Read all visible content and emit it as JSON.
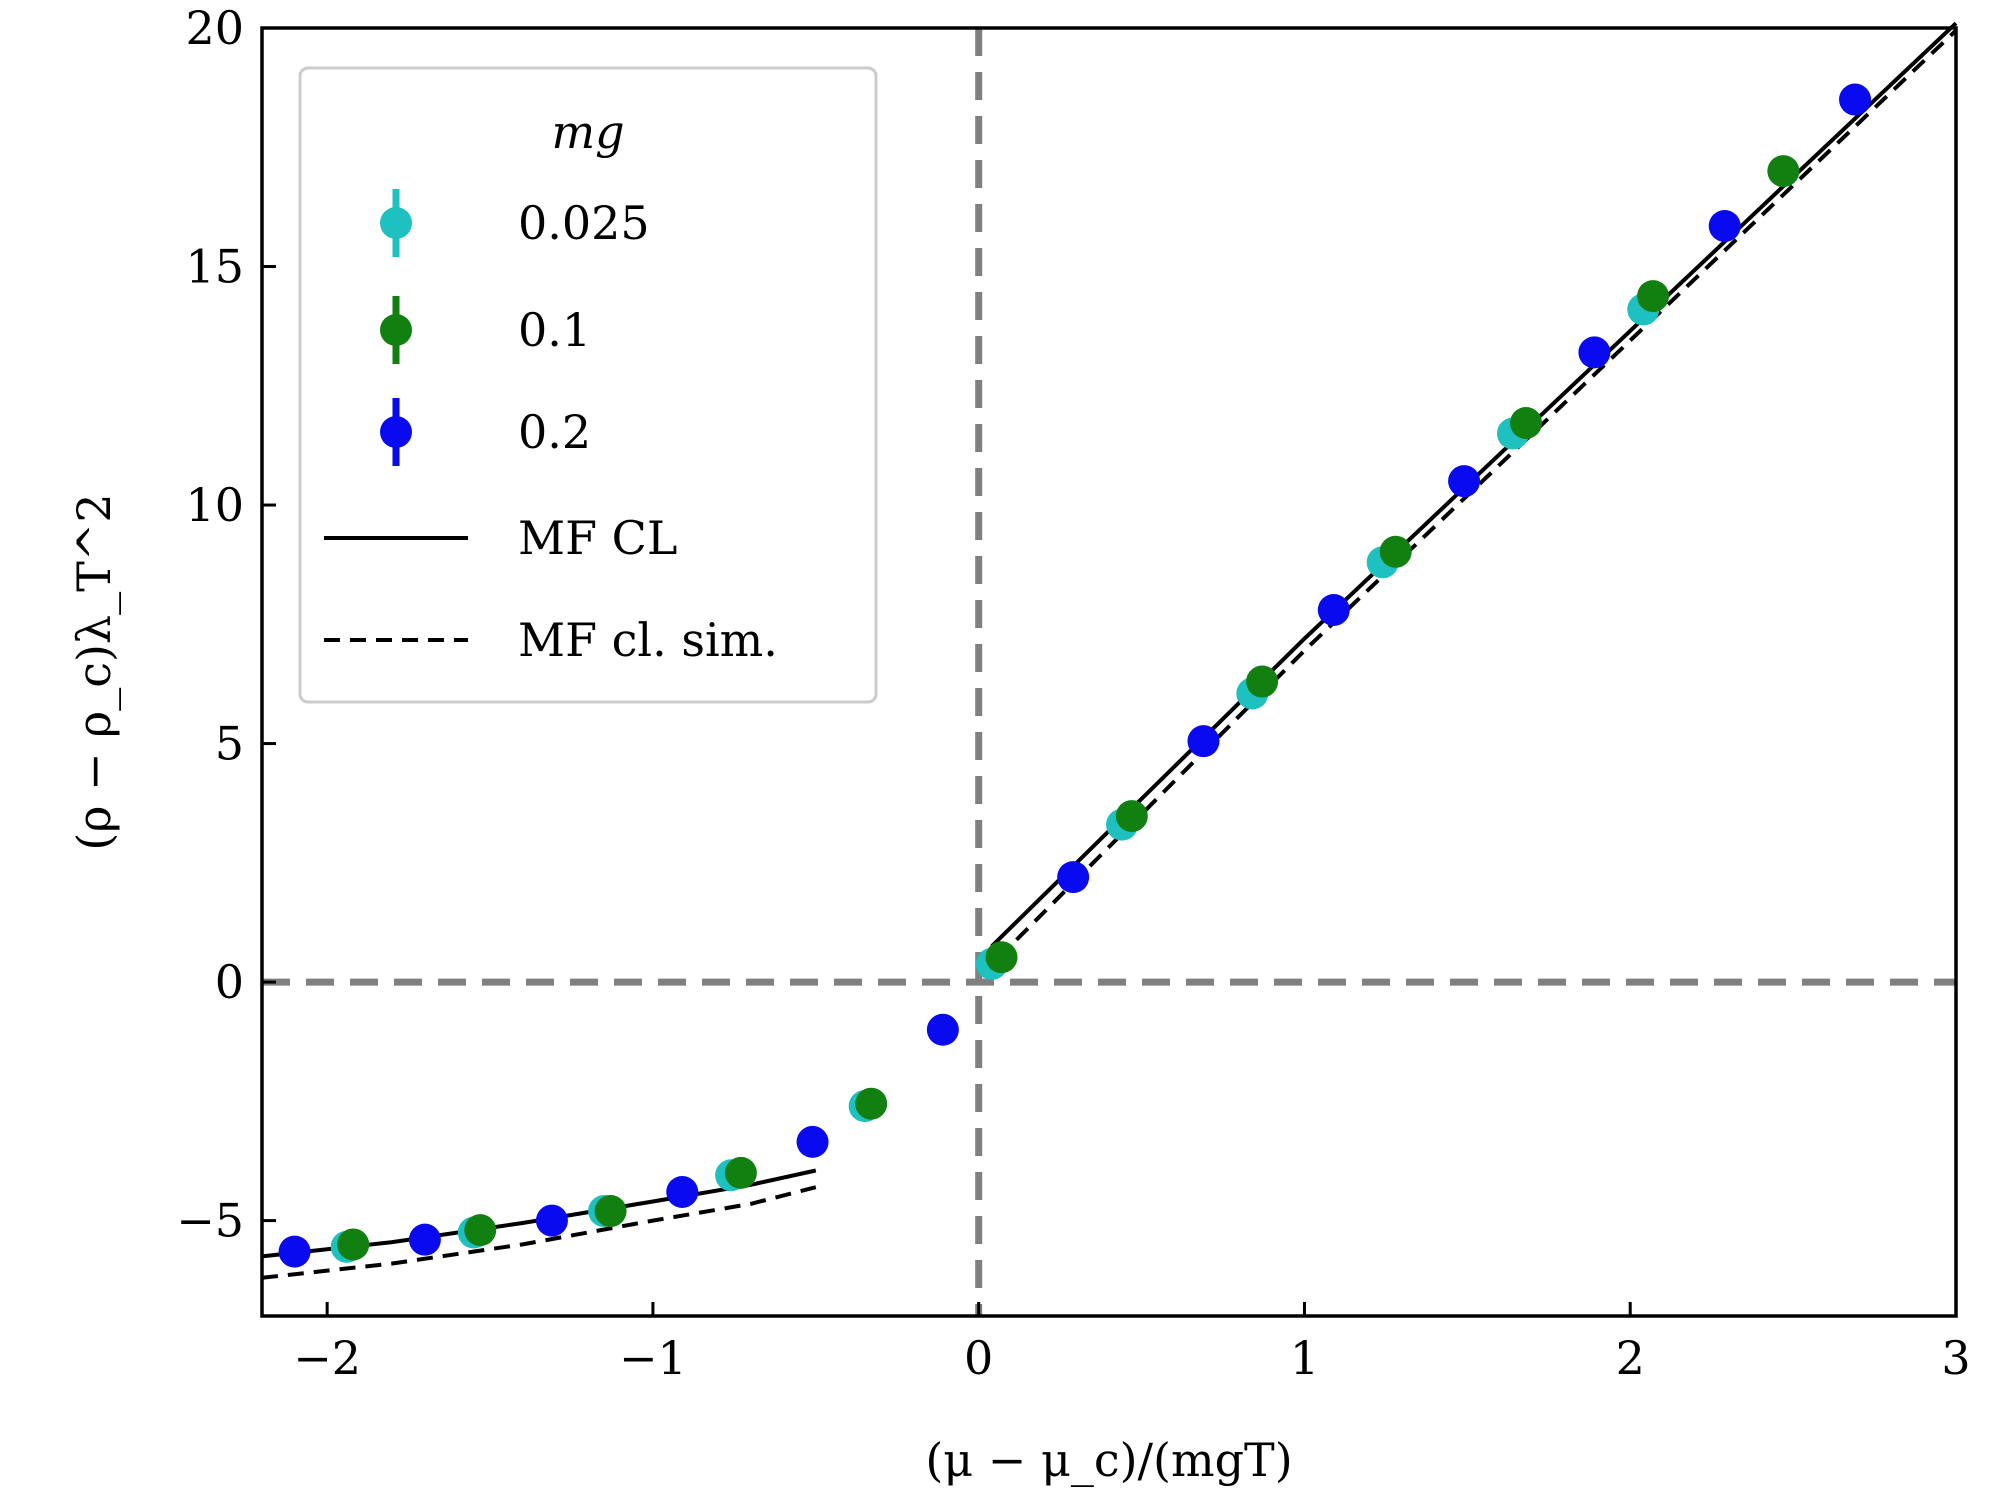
{
  "chart_data": {
    "type": "scatter",
    "xlabel": "(μ − μ_c)/(mgT)",
    "ylabel": "(ρ − ρ_c)λ_T^2",
    "xlim": [
      -2.2,
      3.0
    ],
    "ylim": [
      -7.0,
      20.0
    ],
    "xticks": [
      -2,
      -1,
      0,
      1,
      2,
      3
    ],
    "xtick_labels": [
      "−2",
      "−1",
      "0",
      "1",
      "2",
      "3"
    ],
    "yticks": [
      -5,
      0,
      5,
      10,
      15,
      20
    ],
    "ytick_labels": [
      "−5",
      "0",
      "5",
      "10",
      "15",
      "20"
    ],
    "grid": false,
    "reference_lines": {
      "vertical_x": 0,
      "horizontal_y": 0,
      "color": "#808080",
      "style": "dashed"
    },
    "legend": {
      "title": "mg",
      "placement": "upper-left",
      "entries": [
        "0.025",
        "0.1",
        "0.2",
        "MF CL",
        "MF cl. sim."
      ]
    },
    "series": [
      {
        "name": "0.025",
        "kind": "markers",
        "color": "#1fc0c0",
        "x": [
          -1.94,
          -1.55,
          -1.15,
          -0.76,
          -0.35,
          0.04,
          0.44,
          0.84,
          1.24,
          1.64,
          2.04
        ],
        "y": [
          -5.55,
          -5.25,
          -4.8,
          -4.05,
          -2.6,
          0.38,
          3.3,
          6.05,
          8.8,
          11.5,
          14.1
        ]
      },
      {
        "name": "0.1",
        "kind": "markers",
        "color": "#118011",
        "x": [
          -1.92,
          -1.53,
          -1.13,
          -0.73,
          -0.33,
          0.07,
          0.47,
          0.87,
          1.28,
          1.68,
          2.07,
          2.47
        ],
        "y": [
          -5.5,
          -5.2,
          -4.8,
          -4.0,
          -2.55,
          0.52,
          3.48,
          6.3,
          9.02,
          11.72,
          14.38,
          17.0
        ]
      },
      {
        "name": "0.2",
        "kind": "markers",
        "color": "#0a0af0",
        "x": [
          -2.1,
          -1.7,
          -1.31,
          -0.91,
          -0.51,
          -0.11,
          0.29,
          0.69,
          1.09,
          1.49,
          1.89,
          2.29,
          2.69
        ],
        "y": [
          -5.65,
          -5.4,
          -5.0,
          -4.4,
          -3.35,
          -1.0,
          2.2,
          5.05,
          7.8,
          10.5,
          13.2,
          15.85,
          18.5
        ]
      },
      {
        "name": "MF CL",
        "kind": "line",
        "style": "solid",
        "color": "#000000",
        "segments": [
          {
            "x": [
              -2.2,
              -1.8,
              -1.4,
              -1.0,
              -0.7,
              -0.5
            ],
            "y": [
              -5.75,
              -5.45,
              -5.05,
              -4.6,
              -4.25,
              -3.95
            ]
          },
          {
            "x": [
              0.04,
              1.0,
              2.0,
              3.0
            ],
            "y": [
              0.75,
              7.2,
              13.65,
              20.1
            ]
          }
        ]
      },
      {
        "name": "MF cl. sim.",
        "kind": "line",
        "style": "dashed",
        "color": "#000000",
        "segments": [
          {
            "x": [
              -2.2,
              -1.8,
              -1.4,
              -1.0,
              -0.7,
              -0.5
            ],
            "y": [
              -6.2,
              -5.9,
              -5.5,
              -5.0,
              -4.65,
              -4.3
            ]
          },
          {
            "x": [
              0.06,
              1.0,
              2.0,
              3.0
            ],
            "y": [
              0.5,
              6.95,
              13.45,
              19.95
            ]
          }
        ]
      }
    ]
  }
}
